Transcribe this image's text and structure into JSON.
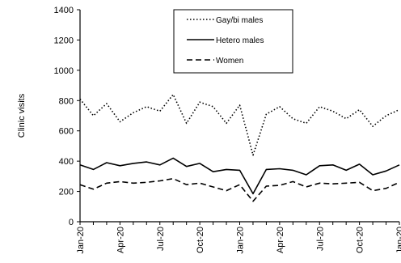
{
  "chart_data": {
    "type": "line",
    "ylabel": "Clinic visits",
    "xlabel": "",
    "title": "",
    "ylim": [
      0,
      1400
    ],
    "yticks": [
      "0",
      "200",
      "400",
      "600",
      "800",
      "1000",
      "1200",
      "1400"
    ],
    "xtick_labels": [
      "Jan-20",
      "Apr-20",
      "Jul-20",
      "Oct-20",
      "Jan-20",
      "Apr-20",
      "Jul-20",
      "Oct-20",
      "Jan-20"
    ],
    "xtick_indices": [
      0,
      3,
      6,
      9,
      12,
      15,
      18,
      21,
      24
    ],
    "legend_position": "top-center",
    "grid": false,
    "series": [
      {
        "name": "Gay/bi males",
        "style": "dotted",
        "color": "#000000",
        "values": [
          810,
          700,
          780,
          660,
          720,
          760,
          730,
          840,
          650,
          790,
          760,
          650,
          770,
          440,
          710,
          760,
          680,
          650,
          760,
          730,
          680,
          740,
          630,
          700,
          740
        ]
      },
      {
        "name": "Hetero males",
        "style": "solid",
        "color": "#000000",
        "values": [
          375,
          345,
          390,
          370,
          385,
          395,
          375,
          420,
          365,
          385,
          330,
          345,
          340,
          185,
          345,
          350,
          340,
          310,
          370,
          375,
          340,
          380,
          310,
          335,
          375
        ]
      },
      {
        "name": "Women",
        "style": "dashed",
        "color": "#000000",
        "values": [
          245,
          215,
          255,
          265,
          255,
          260,
          270,
          285,
          245,
          255,
          230,
          205,
          245,
          135,
          235,
          240,
          265,
          230,
          255,
          250,
          255,
          260,
          205,
          220,
          260
        ]
      }
    ]
  }
}
